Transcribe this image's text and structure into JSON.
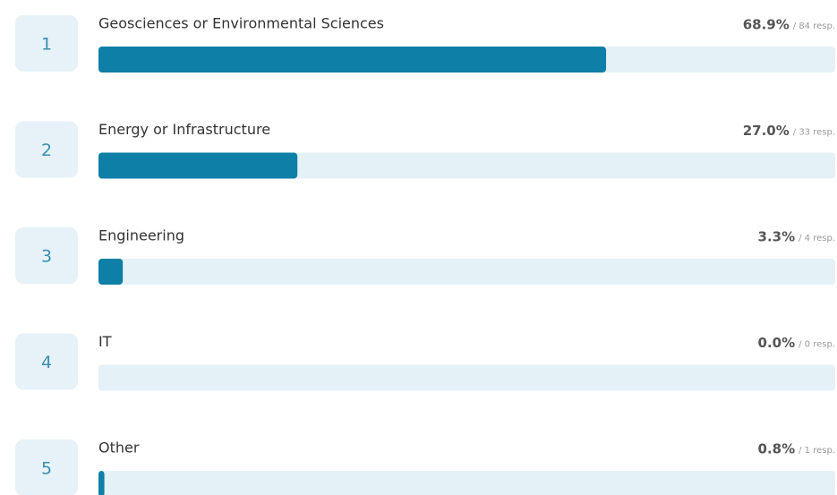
{
  "chart_data": {
    "type": "bar",
    "orientation": "horizontal",
    "ranks": [
      1,
      2,
      3,
      4,
      5
    ],
    "categories": [
      "Geosciences or Environmental Sciences",
      "Energy or Infrastructure",
      "Engineering",
      "IT",
      "Other"
    ],
    "values": [
      68.9,
      27.0,
      3.3,
      0.0,
      0.8
    ],
    "value_labels": [
      "68.9%",
      "27.0%",
      "3.3%",
      "0.0%",
      "0.8%"
    ],
    "response_labels": [
      "/ 84 resp.",
      "/ 33 resp.",
      "/ 4 resp.",
      "/ 0 resp.",
      "/ 1 resp."
    ],
    "color": "#0e7fa6",
    "xlim": [
      0,
      100
    ]
  }
}
